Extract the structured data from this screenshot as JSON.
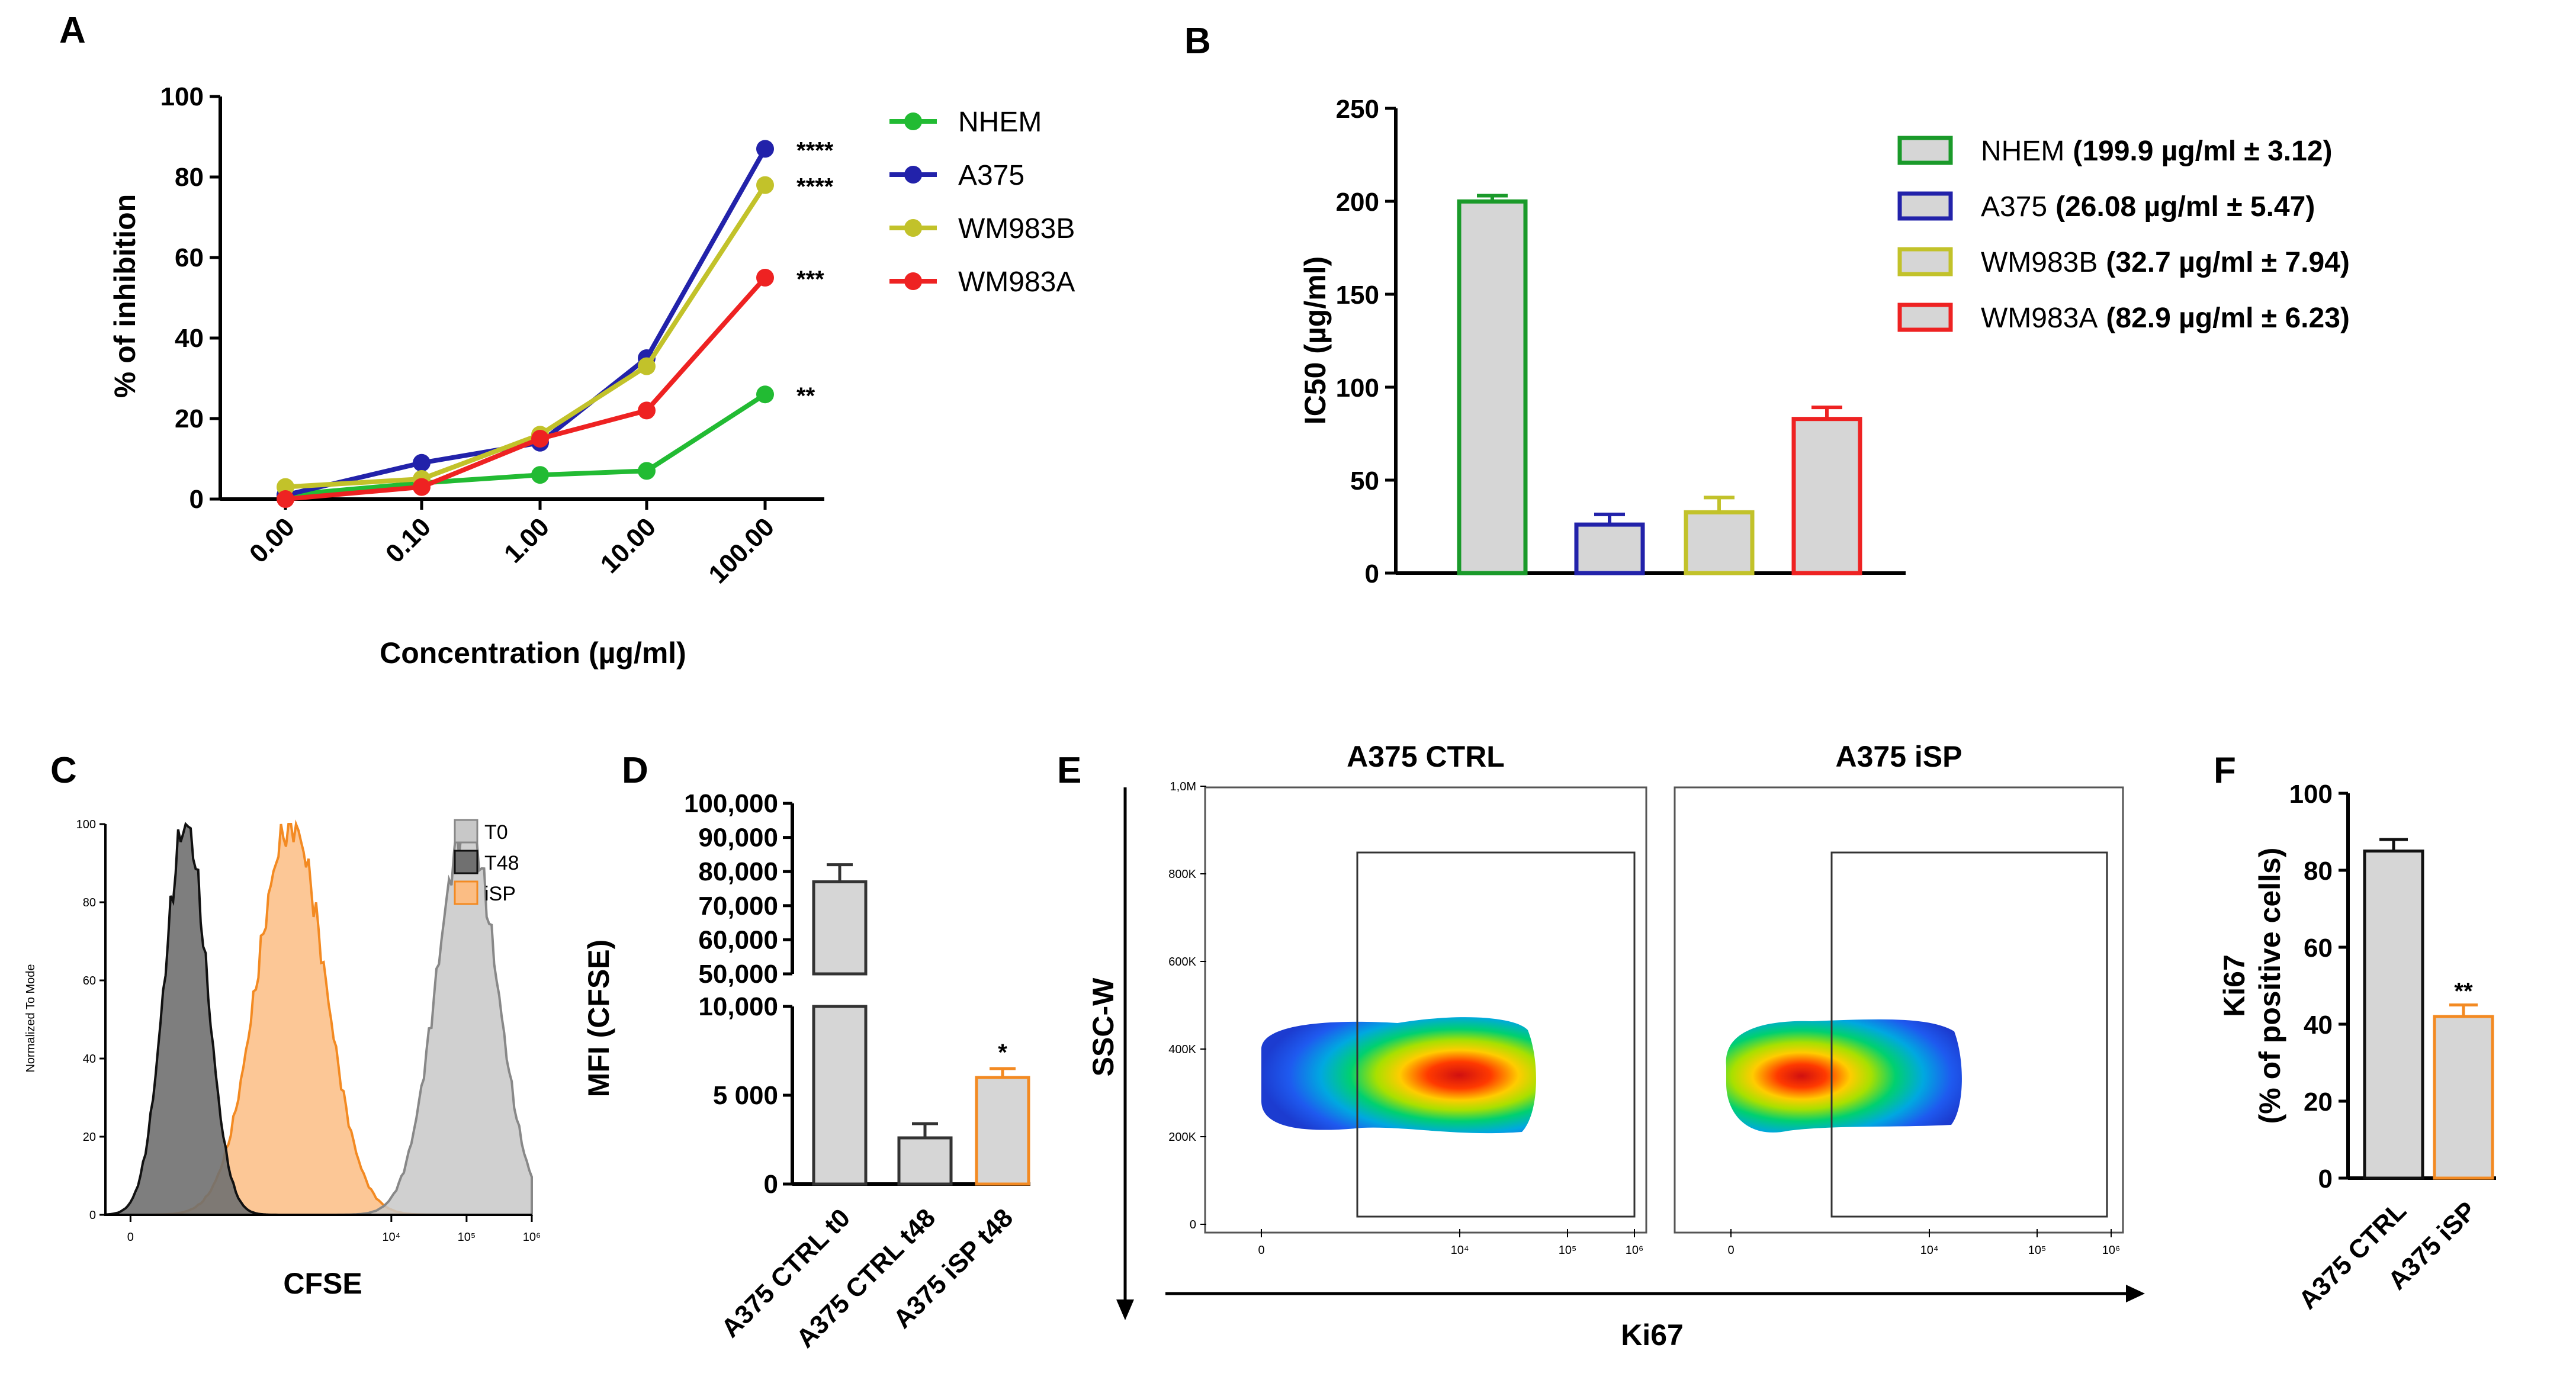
{
  "chart_data": [
    {
      "panel": "A",
      "type": "line",
      "categories": [
        "0.00",
        "0.10",
        "1.00",
        "10.00",
        "100.00"
      ],
      "xlabel": "Concentration (µg/ml)",
      "ylabel": "% of inhibition",
      "ylim": [
        0,
        100
      ],
      "yticks": [
        "0",
        "20",
        "40",
        "60",
        "80",
        "100"
      ],
      "legend_position": "right",
      "series": [
        {
          "name": "NHEM",
          "color": "#22bb33",
          "values": [
            1,
            4,
            6,
            7,
            26
          ],
          "significance": "**"
        },
        {
          "name": "A375",
          "color": "#2222aa",
          "values": [
            1,
            9,
            14,
            35,
            87
          ],
          "significance": "****"
        },
        {
          "name": "WM983B",
          "color": "#c2c22a",
          "values": [
            3,
            5,
            16,
            33,
            78
          ],
          "significance": "****"
        },
        {
          "name": "WM983A",
          "color": "#ee2222",
          "values": [
            0,
            3,
            15,
            22,
            55
          ],
          "significance": "***"
        }
      ]
    },
    {
      "panel": "B",
      "type": "bar",
      "ylabel": "IC50 (µg/ml)",
      "ylim": [
        0,
        250
      ],
      "yticks": [
        "0",
        "50",
        "100",
        "150",
        "200",
        "250"
      ],
      "legend_position": "right",
      "series": [
        {
          "name": "NHEM",
          "stat": "(199.9 µg/ml ± 3.12)",
          "value": 199.9,
          "error": 3.12,
          "color": "#1a9a2a"
        },
        {
          "name": "A375",
          "stat": "(26.08 µg/ml ± 5.47)",
          "value": 26.08,
          "error": 5.47,
          "color": "#2222aa"
        },
        {
          "name": "WM983B",
          "stat": "(32.7 µg/ml ± 7.94)",
          "value": 32.7,
          "error": 7.94,
          "color": "#c2c22a"
        },
        {
          "name": "WM983A",
          "stat": "(82.9 µg/ml ± 6.23)",
          "value": 82.9,
          "error": 6.23,
          "color": "#ee2222"
        }
      ]
    },
    {
      "panel": "C",
      "type": "area",
      "xlabel": "CFSE",
      "ylabel": "Normalized To Mode",
      "ylim": [
        0,
        100
      ],
      "yticks": [
        "0",
        "20",
        "40",
        "60",
        "80",
        "100"
      ],
      "xticks": [
        "0",
        "10⁴",
        "10⁵",
        "10⁶"
      ],
      "legend_position": "top-right",
      "series": [
        {
          "name": "T0",
          "color": "#c8c8c8",
          "stroke": "#888888",
          "peak_x": 6.7
        },
        {
          "name": "T48",
          "color": "#707070",
          "stroke": "#111111",
          "peak_x": 1.1
        },
        {
          "name": "iSP",
          "color": "#fbbd84",
          "stroke": "#f38a22",
          "peak_x": 3.2
        }
      ]
    },
    {
      "panel": "D",
      "type": "bar",
      "ylabel": "MFI (CFSE)",
      "yticks_upper": [
        "50,000",
        "60,000",
        "70,000",
        "80,000",
        "90,000",
        "100,000"
      ],
      "yticks_lower": [
        "0",
        "5 000",
        "10,000"
      ],
      "categories": [
        "A375 CTRL t0",
        "A375 CTRL t48",
        "A375 iSP t48"
      ],
      "values": [
        77000,
        2600,
        6000
      ],
      "errors": [
        5000,
        800,
        500
      ],
      "colors": [
        "#333333",
        "#333333",
        "#f38a22"
      ],
      "significance": [
        "",
        "",
        "*"
      ]
    },
    {
      "panel": "E",
      "type": "scatter",
      "xlabel": "Ki67",
      "ylabel": "SSC-W",
      "subplots": [
        "A375 CTRL",
        "A375 iSP"
      ],
      "yticks": [
        "0",
        "200K",
        "400K",
        "600K",
        "800K",
        "1,0M"
      ],
      "xticks": [
        "0",
        "10⁴",
        "10⁵",
        "10⁶"
      ]
    },
    {
      "panel": "F",
      "type": "bar",
      "ylabel": "Ki67",
      "ylabel2": "(% of positive cells)",
      "ylim": [
        0,
        100
      ],
      "yticks": [
        "0",
        "20",
        "40",
        "60",
        "80",
        "100"
      ],
      "categories": [
        "A375 CTRL",
        "A375 iSP"
      ],
      "values": [
        85,
        42
      ],
      "errors": [
        3,
        3
      ],
      "colors": [
        "#111111",
        "#f38a22"
      ],
      "significance": [
        "",
        "**"
      ]
    }
  ]
}
